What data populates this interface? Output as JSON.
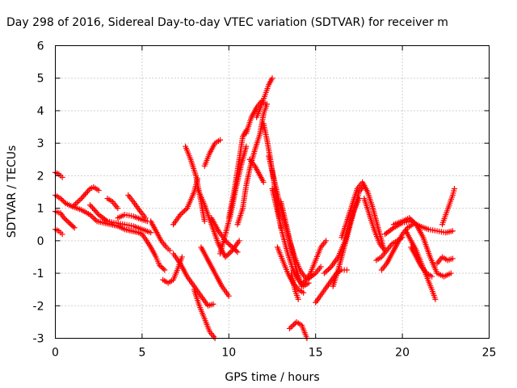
{
  "chart_data": {
    "type": "scatter",
    "title": "Day 298 of 2016, Sidereal Day-to-day VTEC variation (SDTVAR) for receiver m",
    "xlabel": "GPS time / hours",
    "ylabel": "SDTVAR / TECUs",
    "xlim": [
      0,
      25
    ],
    "ylim": [
      -3,
      6
    ],
    "xticks": [
      0,
      5,
      10,
      15,
      20,
      25
    ],
    "yticks": [
      -3,
      -2,
      -1,
      0,
      1,
      2,
      3,
      4,
      5,
      6
    ],
    "grid": true,
    "marker": "+",
    "color": "#ff0000",
    "series": [
      {
        "x": [
          0.0,
          0.3,
          0.6,
          1.0,
          1.5,
          2.0,
          2.4,
          2.8,
          3.2,
          3.6,
          4.0,
          4.4,
          4.8,
          5.0
        ],
        "y": [
          1.4,
          1.3,
          1.15,
          1.05,
          0.95,
          0.8,
          0.6,
          0.55,
          0.5,
          0.45,
          0.35,
          0.3,
          0.25,
          0.2
        ]
      },
      {
        "x": [
          0.0,
          0.3,
          0.5,
          0.8,
          1.1
        ],
        "y": [
          0.9,
          0.85,
          0.7,
          0.55,
          0.4
        ]
      },
      {
        "x": [
          0.0,
          0.2,
          0.4
        ],
        "y": [
          0.35,
          0.3,
          0.2
        ]
      },
      {
        "x": [
          0.0,
          0.2,
          0.4
        ],
        "y": [
          2.1,
          2.05,
          1.95
        ]
      },
      {
        "x": [
          1.0,
          1.5,
          2.0,
          2.2,
          2.5
        ],
        "y": [
          1.05,
          1.3,
          1.6,
          1.65,
          1.55
        ]
      },
      {
        "x": [
          2.0,
          2.5,
          3.0,
          3.5,
          4.0,
          4.5,
          5.0,
          5.5
        ],
        "y": [
          1.1,
          0.8,
          0.6,
          0.55,
          0.5,
          0.45,
          0.35,
          0.25
        ]
      },
      {
        "x": [
          3.0,
          3.3,
          3.6
        ],
        "y": [
          1.3,
          1.2,
          1.0
        ]
      },
      {
        "x": [
          3.6,
          4.0,
          4.5,
          5.0,
          5.3
        ],
        "y": [
          0.7,
          0.8,
          0.75,
          0.65,
          0.6
        ]
      },
      {
        "x": [
          4.2,
          4.5,
          4.9,
          5.2
        ],
        "y": [
          1.4,
          1.2,
          0.9,
          0.7
        ]
      },
      {
        "x": [
          5.0,
          5.2,
          5.5,
          5.8,
          6.0,
          6.3
        ],
        "y": [
          0.2,
          0.05,
          -0.2,
          -0.5,
          -0.75,
          -0.9
        ]
      },
      {
        "x": [
          5.5,
          5.8,
          6.1,
          6.4,
          6.6
        ],
        "y": [
          0.6,
          0.3,
          0.0,
          -0.2,
          -0.3
        ]
      },
      {
        "x": [
          6.2,
          6.5,
          6.8,
          7.1,
          7.3
        ],
        "y": [
          -1.2,
          -1.3,
          -1.2,
          -0.8,
          -0.5
        ]
      },
      {
        "x": [
          6.8,
          7.2,
          7.6,
          8.0,
          8.4,
          8.8,
          9.1
        ],
        "y": [
          -0.4,
          -0.7,
          -1.1,
          -1.4,
          -1.7,
          -2.0,
          -1.95
        ]
      },
      {
        "x": [
          6.8,
          7.2,
          7.6,
          8.0,
          8.2
        ],
        "y": [
          0.5,
          0.8,
          1.0,
          1.5,
          1.9
        ]
      },
      {
        "x": [
          7.5,
          7.8,
          8.1,
          8.4,
          8.6
        ],
        "y": [
          2.9,
          2.5,
          2.0,
          1.2,
          0.6
        ]
      },
      {
        "x": [
          8.0,
          8.3,
          8.6,
          8.9,
          9.2
        ],
        "y": [
          -1.5,
          -2.0,
          -2.4,
          -2.8,
          -3.0
        ]
      },
      {
        "x": [
          8.2,
          8.6,
          9.0,
          9.4,
          9.8,
          10.2,
          10.6
        ],
        "y": [
          1.6,
          1.1,
          0.5,
          -0.1,
          -0.5,
          -0.3,
          0.0
        ]
      },
      {
        "x": [
          8.4,
          8.8,
          9.2,
          9.6,
          10.0
        ],
        "y": [
          -0.2,
          -0.6,
          -1.0,
          -1.4,
          -1.7
        ]
      },
      {
        "x": [
          8.6,
          8.9,
          9.2,
          9.5
        ],
        "y": [
          2.3,
          2.7,
          3.0,
          3.1
        ]
      },
      {
        "x": [
          9.0,
          9.4,
          9.8,
          10.2,
          10.5
        ],
        "y": [
          0.7,
          0.3,
          0.0,
          -0.2,
          -0.35
        ]
      },
      {
        "x": [
          9.5,
          9.8,
          10.1,
          10.4,
          10.7,
          11.0
        ],
        "y": [
          -0.4,
          0.2,
          0.8,
          1.6,
          2.3,
          2.9
        ]
      },
      {
        "x": [
          10.0,
          10.3,
          10.6,
          10.8,
          11.0
        ],
        "y": [
          0.7,
          1.5,
          2.5,
          3.2,
          3.4
        ]
      },
      {
        "x": [
          10.5,
          10.8,
          11.0,
          11.2,
          11.5,
          11.8,
          12.0,
          12.2
        ],
        "y": [
          0.5,
          1.0,
          1.7,
          2.2,
          2.8,
          3.3,
          3.9,
          4.2
        ]
      },
      {
        "x": [
          11.0,
          11.3,
          11.6,
          11.9,
          12.1
        ],
        "y": [
          3.3,
          3.8,
          4.1,
          4.3,
          4.2
        ]
      },
      {
        "x": [
          11.2,
          11.5,
          11.8,
          12.0
        ],
        "y": [
          2.5,
          2.3,
          2.0,
          1.8
        ]
      },
      {
        "x": [
          11.6,
          11.9,
          12.1,
          12.3,
          12.5
        ],
        "y": [
          3.8,
          4.2,
          4.5,
          4.8,
          5.0
        ]
      },
      {
        "x": [
          12.0,
          12.2,
          12.4,
          12.6,
          12.8,
          13.0
        ],
        "y": [
          3.6,
          3.1,
          2.5,
          1.8,
          1.1,
          0.4
        ]
      },
      {
        "x": [
          12.3,
          12.6,
          12.9,
          13.2,
          13.5,
          13.8,
          14.1,
          14.5,
          15.0,
          15.3
        ],
        "y": [
          2.6,
          1.9,
          1.2,
          0.6,
          0.0,
          -0.5,
          -0.9,
          -1.2,
          -1.0,
          -0.8
        ]
      },
      {
        "x": [
          12.5,
          12.8,
          13.1,
          13.4,
          13.7,
          14.0,
          14.3,
          14.6
        ],
        "y": [
          1.6,
          0.9,
          0.2,
          -0.4,
          -0.9,
          -1.2,
          -1.4,
          -1.3
        ]
      },
      {
        "x": [
          12.8,
          13.1,
          13.4,
          13.7,
          14.0,
          14.3
        ],
        "y": [
          -0.2,
          -0.6,
          -1.0,
          -1.3,
          -1.5,
          -1.6
        ]
      },
      {
        "x": [
          13.0,
          13.3,
          13.6,
          13.9,
          14.2
        ],
        "y": [
          1.2,
          0.5,
          -0.2,
          -0.9,
          -1.4
        ]
      },
      {
        "x": [
          13.6,
          13.8,
          14.0
        ],
        "y": [
          -1.0,
          -1.5,
          -1.8
        ]
      },
      {
        "x": [
          13.5,
          13.9,
          14.2,
          14.5
        ],
        "y": [
          -2.7,
          -2.5,
          -2.6,
          -3.0
        ]
      },
      {
        "x": [
          14.3,
          14.7,
          15.0,
          15.3,
          15.6
        ],
        "y": [
          -1.3,
          -1.0,
          -0.6,
          -0.2,
          0.0
        ]
      },
      {
        "x": [
          15.0,
          15.4,
          15.8,
          16.2,
          16.5,
          16.8
        ],
        "y": [
          -1.9,
          -1.6,
          -1.3,
          -1.0,
          -0.9,
          -0.9
        ]
      },
      {
        "x": [
          15.5,
          15.9,
          16.3,
          16.7,
          17.0,
          17.3,
          17.5,
          17.8
        ],
        "y": [
          -1.0,
          -0.8,
          -0.5,
          0.0,
          0.6,
          1.1,
          1.5,
          1.7
        ]
      },
      {
        "x": [
          16.0,
          16.3,
          16.6,
          16.9,
          17.2,
          17.5
        ],
        "y": [
          -1.4,
          -0.9,
          -0.3,
          0.3,
          0.9,
          1.3
        ]
      },
      {
        "x": [
          16.5,
          16.8,
          17.1,
          17.4,
          17.7,
          18.0,
          18.3,
          18.6,
          18.9
        ],
        "y": [
          0.1,
          0.6,
          1.1,
          1.6,
          1.8,
          1.5,
          1.0,
          0.4,
          -0.2
        ]
      },
      {
        "x": [
          17.8,
          18.1,
          18.4,
          18.7,
          19.0
        ],
        "y": [
          1.3,
          0.8,
          0.3,
          -0.1,
          -0.3
        ]
      },
      {
        "x": [
          18.5,
          18.8,
          19.1,
          19.4,
          19.7,
          20.0
        ],
        "y": [
          -0.6,
          -0.5,
          -0.3,
          -0.1,
          0.0,
          0.1
        ]
      },
      {
        "x": [
          18.8,
          19.1,
          19.4,
          19.7,
          20.0,
          20.3,
          20.6
        ],
        "y": [
          -0.9,
          -0.7,
          -0.4,
          -0.1,
          0.2,
          0.4,
          0.5
        ]
      },
      {
        "x": [
          19.0,
          19.5,
          20.0,
          20.5,
          21.0,
          21.5,
          22.0,
          22.5,
          22.9
        ],
        "y": [
          0.2,
          0.4,
          0.55,
          0.6,
          0.45,
          0.35,
          0.3,
          0.25,
          0.3
        ]
      },
      {
        "x": [
          19.5,
          20.0,
          20.4,
          20.8,
          21.2,
          21.6,
          22.0,
          22.4,
          22.8
        ],
        "y": [
          0.5,
          0.6,
          0.7,
          0.5,
          0.1,
          -0.5,
          -1.0,
          -1.1,
          -1.0
        ]
      },
      {
        "x": [
          20.2,
          20.5,
          20.8,
          21.1,
          21.4,
          21.7,
          21.9
        ],
        "y": [
          0.3,
          0.0,
          -0.3,
          -0.7,
          -1.1,
          -1.5,
          -1.8
        ]
      },
      {
        "x": [
          20.5,
          20.8,
          21.1,
          21.4,
          21.7
        ],
        "y": [
          -0.2,
          -0.5,
          -0.8,
          -1.0,
          -1.1
        ]
      },
      {
        "x": [
          22.0,
          22.3,
          22.6,
          22.9
        ],
        "y": [
          -0.7,
          -0.5,
          -0.6,
          -0.55
        ]
      },
      {
        "x": [
          22.3,
          22.5,
          22.7,
          22.9,
          23.0
        ],
        "y": [
          0.5,
          0.8,
          1.1,
          1.4,
          1.6
        ]
      }
    ]
  }
}
